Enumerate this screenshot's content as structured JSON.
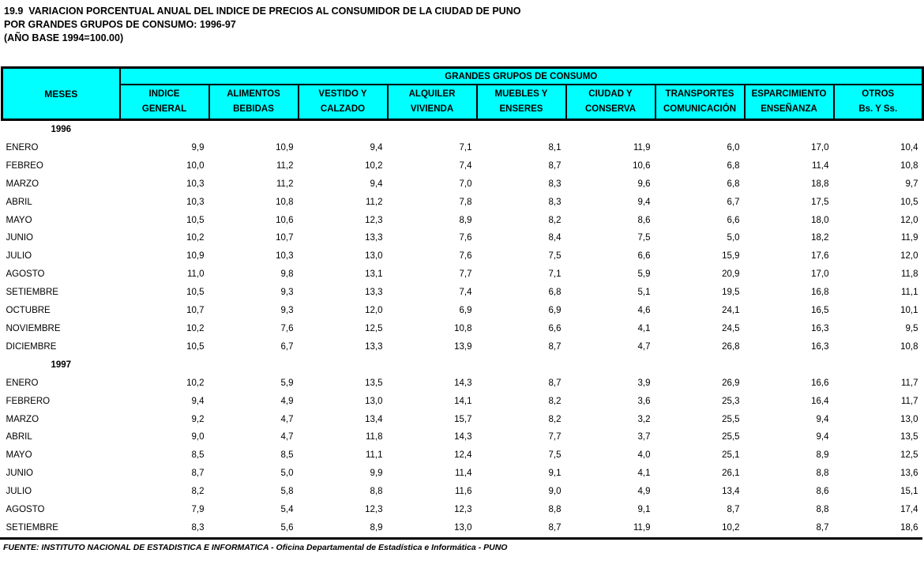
{
  "title": {
    "line1": "19.9  VARIACION PORCENTUAL ANUAL DEL INDICE DE PRECIOS AL CONSUMIDOR DE LA CIUDAD DE PUNO",
    "line2": "POR GRANDES GRUPOS DE CONSUMO: 1996-97",
    "line3": "(AÑO BASE 1994=100.00)"
  },
  "colors": {
    "header_background": "#00FFFF",
    "border": "#000000"
  },
  "table": {
    "meses_header": "MESES",
    "group_header": "GRANDES GRUPOS DE CONSUMO",
    "columns": [
      {
        "line1": "INDICE",
        "line2": "GENERAL"
      },
      {
        "line1": "ALIMENTOS",
        "line2": "BEBIDAS"
      },
      {
        "line1": "VESTIDO Y",
        "line2": "CALZADO"
      },
      {
        "line1": "ALQUILER",
        "line2": "VIVIENDA"
      },
      {
        "line1": "MUEBLES Y",
        "line2": "ENSERES"
      },
      {
        "line1": "CIUDAD Y",
        "line2": "CONSERVA"
      },
      {
        "line1": "TRANSPORTES",
        "line2": "COMUNICACIÓN"
      },
      {
        "line1": "ESPARCIMIENTO",
        "line2": "ENSEÑANZA"
      },
      {
        "line1": "OTROS",
        "line2": "Bs. Y Ss."
      }
    ],
    "sections": [
      {
        "year": "1996",
        "rows": [
          {
            "month": "ENERO",
            "values": [
              "9,9",
              "10,9",
              "9,4",
              "7,1",
              "8,1",
              "11,9",
              "6,0",
              "17,0",
              "10,4"
            ]
          },
          {
            "month": "FEBREO",
            "values": [
              "10,0",
              "11,2",
              "10,2",
              "7,4",
              "8,7",
              "10,6",
              "6,8",
              "11,4",
              "10,8"
            ]
          },
          {
            "month": "MARZO",
            "values": [
              "10,3",
              "11,2",
              "9,4",
              "7,0",
              "8,3",
              "9,6",
              "6,8",
              "18,8",
              "9,7"
            ]
          },
          {
            "month": "ABRIL",
            "values": [
              "10,3",
              "10,8",
              "11,2",
              "7,8",
              "8,3",
              "9,4",
              "6,7",
              "17,5",
              "10,5"
            ]
          },
          {
            "month": "MAYO",
            "values": [
              "10,5",
              "10,6",
              "12,3",
              "8,9",
              "8,2",
              "8,6",
              "6,6",
              "18,0",
              "12,0"
            ]
          },
          {
            "month": "JUNIO",
            "values": [
              "10,2",
              "10,7",
              "13,3",
              "7,6",
              "8,4",
              "7,5",
              "5,0",
              "18,2",
              "11,9"
            ]
          },
          {
            "month": "JULIO",
            "values": [
              "10,9",
              "10,3",
              "13,0",
              "7,6",
              "7,5",
              "6,6",
              "15,9",
              "17,6",
              "12,0"
            ]
          },
          {
            "month": "AGOSTO",
            "values": [
              "11,0",
              "9,8",
              "13,1",
              "7,7",
              "7,1",
              "5,9",
              "20,9",
              "17,0",
              "11,8"
            ]
          },
          {
            "month": "SETIEMBRE",
            "values": [
              "10,5",
              "9,3",
              "13,3",
              "7,4",
              "6,8",
              "5,1",
              "19,5",
              "16,8",
              "11,1"
            ]
          },
          {
            "month": "OCTUBRE",
            "values": [
              "10,7",
              "9,3",
              "12,0",
              "6,9",
              "6,9",
              "4,6",
              "24,1",
              "16,5",
              "10,1"
            ]
          },
          {
            "month": "NOVIEMBRE",
            "values": [
              "10,2",
              "7,6",
              "12,5",
              "10,8",
              "6,6",
              "4,1",
              "24,5",
              "16,3",
              "9,5"
            ]
          },
          {
            "month": "DICIEMBRE",
            "values": [
              "10,5",
              "6,7",
              "13,3",
              "13,9",
              "8,7",
              "4,7",
              "26,8",
              "16,3",
              "10,8"
            ]
          }
        ]
      },
      {
        "year": "1997",
        "rows": [
          {
            "month": "ENERO",
            "values": [
              "10,2",
              "5,9",
              "13,5",
              "14,3",
              "8,7",
              "3,9",
              "26,9",
              "16,6",
              "11,7"
            ]
          },
          {
            "month": "FEBRERO",
            "values": [
              "9,4",
              "4,9",
              "13,0",
              "14,1",
              "8,2",
              "3,6",
              "25,3",
              "16,4",
              "11,7"
            ]
          },
          {
            "month": "MARZO",
            "values": [
              "9,2",
              "4,7",
              "13,4",
              "15,7",
              "8,2",
              "3,2",
              "25,5",
              "9,4",
              "13,0"
            ]
          },
          {
            "month": "ABRIL",
            "values": [
              "9,0",
              "4,7",
              "11,8",
              "14,3",
              "7,7",
              "3,7",
              "25,5",
              "9,4",
              "13,5"
            ]
          },
          {
            "month": "MAYO",
            "values": [
              "8,5",
              "8,5",
              "11,1",
              "12,4",
              "7,5",
              "4,0",
              "25,1",
              "8,9",
              "12,5"
            ]
          },
          {
            "month": "JUNIO",
            "values": [
              "8,7",
              "5,0",
              "9,9",
              "11,4",
              "9,1",
              "4,1",
              "26,1",
              "8,8",
              "13,6"
            ]
          },
          {
            "month": "JULIO",
            "values": [
              "8,2",
              "5,8",
              "8,8",
              "11,6",
              "9,0",
              "4,9",
              "13,4",
              "8,6",
              "15,1"
            ]
          },
          {
            "month": "AGOSTO",
            "values": [
              "7,9",
              "5,4",
              "12,3",
              "12,3",
              "8,8",
              "9,1",
              "8,7",
              "8,8",
              "17,4"
            ]
          },
          {
            "month": "SETIEMBRE",
            "values": [
              "8,3",
              "5,6",
              "8,9",
              "13,0",
              "8,7",
              "11,9",
              "10,2",
              "8,7",
              "18,6"
            ]
          }
        ]
      }
    ]
  },
  "footer": {
    "source": "FUENTE: INSTITUTO NACIONAL DE ESTADISTICA E INFORMATICA - Oficina Departamental de Estadística e Informática - PUNO"
  }
}
